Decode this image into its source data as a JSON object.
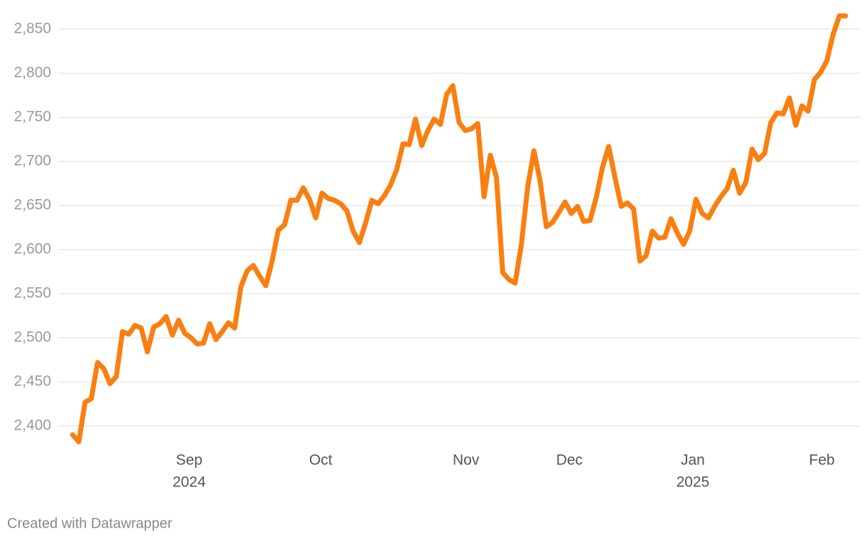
{
  "chart_data": {
    "type": "line",
    "footer": "Created with Datawrapper",
    "series": [
      {
        "color": "#fa7f11",
        "values": [
          2390,
          2382,
          2427,
          2431,
          2472,
          2465,
          2448,
          2456,
          2507,
          2504,
          2514,
          2511,
          2484,
          2512,
          2516,
          2524,
          2503,
          2520,
          2505,
          2500,
          2493,
          2494,
          2516,
          2498,
          2507,
          2517,
          2511,
          2558,
          2576,
          2582,
          2570,
          2559,
          2587,
          2622,
          2628,
          2656,
          2656,
          2670,
          2657,
          2636,
          2664,
          2658,
          2656,
          2652,
          2644,
          2621,
          2608,
          2630,
          2656,
          2652,
          2661,
          2673,
          2691,
          2720,
          2719,
          2748,
          2718,
          2735,
          2748,
          2742,
          2776,
          2786,
          2744,
          2735,
          2737,
          2743,
          2660,
          2707,
          2682,
          2574,
          2566,
          2562,
          2606,
          2671,
          2712,
          2678,
          2626,
          2631,
          2642,
          2654,
          2641,
          2649,
          2632,
          2633,
          2659,
          2693,
          2717,
          2682,
          2649,
          2653,
          2646,
          2587,
          2593,
          2621,
          2613,
          2614,
          2635,
          2619,
          2606,
          2621,
          2657,
          2641,
          2636,
          2649,
          2660,
          2669,
          2690,
          2664,
          2676,
          2714,
          2702,
          2709,
          2744,
          2755,
          2754,
          2772,
          2741,
          2763,
          2757,
          2793,
          2801,
          2814,
          2844,
          2865,
          2865
        ]
      }
    ],
    "xlim": [
      -2.3,
      126.3
    ],
    "xticks": [
      {
        "value": 18.7,
        "label": "Sep",
        "year": "2024"
      },
      {
        "value": 39.8,
        "label": "Oct"
      },
      {
        "value": 63.1,
        "label": "Nov"
      },
      {
        "value": 79.7,
        "label": "Dec"
      },
      {
        "value": 99.5,
        "label": "Jan",
        "year": "2025"
      },
      {
        "value": 120.2,
        "label": "Feb"
      }
    ],
    "ylim": [
      2380,
      2870
    ],
    "yticks": [
      {
        "value": 2400,
        "label": "2,400"
      },
      {
        "value": 2450,
        "label": "2,450"
      },
      {
        "value": 2500,
        "label": "2,500"
      },
      {
        "value": 2550,
        "label": "2,550"
      },
      {
        "value": 2600,
        "label": "2,600"
      },
      {
        "value": 2650,
        "label": "2,650"
      },
      {
        "value": 2700,
        "label": "2,700"
      },
      {
        "value": 2750,
        "label": "2,750"
      },
      {
        "value": 2800,
        "label": "2,800"
      },
      {
        "value": 2850,
        "label": "2,850"
      }
    ],
    "grid": true
  }
}
